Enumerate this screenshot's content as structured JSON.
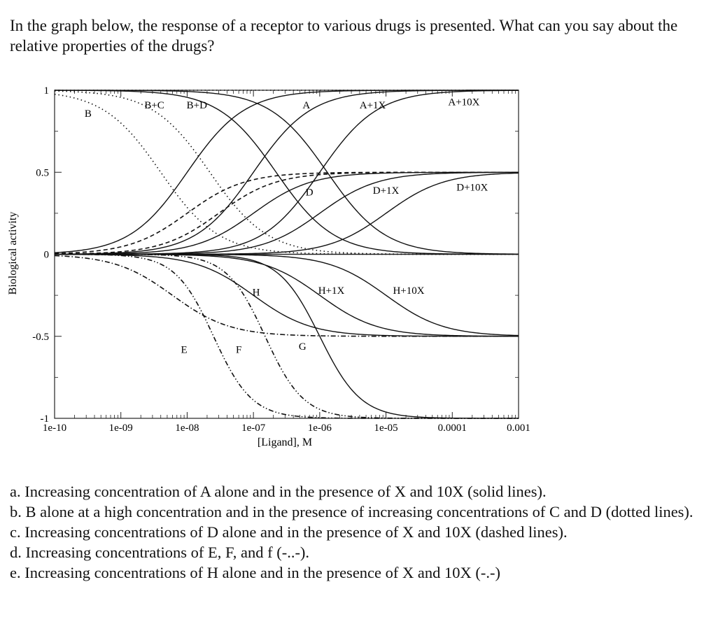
{
  "question": "In the graph below, the response of a receptor to various drugs is presented. What can you say about the relative properties of the drugs?",
  "items": [
    "a. Increasing concentration of A alone and in the presence of X and 10X (solid lines).",
    "b. B alone at a high concentration and in the presence of increasing concentrations of C and D (dotted lines).",
    "c. Increasing concentrations of D alone and in the presence of X and 10X (dashed lines).",
    "d. Increasing concentrations of E, F, and f (-..-).",
    "e. Increasing concentrations of H alone and in the presence of X and 10X (-.-)"
  ],
  "chart_data": {
    "type": "line",
    "title": "",
    "xlabel": "[Ligand], M",
    "ylabel": "Biological activity",
    "xscale": "log",
    "xlim": [
      1e-10,
      0.001
    ],
    "ylim": [
      -1,
      1
    ],
    "xticks": [
      1e-10,
      1e-09,
      1e-08,
      1e-07,
      1e-06,
      1e-05,
      0.0001,
      0.001
    ],
    "xtick_labels": [
      "1e-10",
      "1e-09",
      "1e-08",
      "1e-07",
      "1e-06",
      "1e-05",
      "0.0001",
      "0.001"
    ],
    "yticks": [
      -1,
      -0.5,
      0,
      0.5,
      1
    ],
    "ytick_labels": [
      "-1",
      "-0.5",
      "0",
      "0.5",
      "1"
    ],
    "grid": false,
    "series": [
      {
        "name": "A",
        "style": "solid",
        "kind": "agonist",
        "top": 1,
        "ec50": 1e-08,
        "hill": 1,
        "label_at": [
          6.3e-07,
          0.91
        ]
      },
      {
        "name": "A+1X",
        "style": "solid",
        "kind": "agonist",
        "top": 1,
        "ec50": 1e-07,
        "hill": 1,
        "label_at": [
          6.3e-06,
          0.91
        ]
      },
      {
        "name": "A+10X",
        "style": "solid",
        "kind": "agonist",
        "top": 1,
        "ec50": 1e-06,
        "hill": 1,
        "label_at": [
          0.00015,
          0.93
        ]
      },
      {
        "name": "B+C",
        "style": "solid",
        "kind": "inhibition",
        "top": 1,
        "ic50": 2.2e-07,
        "hill": 1,
        "label_at": null
      },
      {
        "name": "B+D",
        "style": "solid",
        "kind": "inhibition",
        "top": 1,
        "ic50": 1.3e-06,
        "hill": 1,
        "label_at": null
      },
      {
        "name": "B+C",
        "style": "dotted",
        "kind": "inhibition",
        "top": 1,
        "ic50": 4e-09,
        "hill": 1,
        "label_at": [
          3.2e-09,
          0.91
        ]
      },
      {
        "name": "B+D",
        "style": "dotted",
        "kind": "inhibition",
        "top": 1,
        "ic50": 2.2e-08,
        "hill": 1,
        "label_at": [
          1.4e-08,
          0.91
        ]
      },
      {
        "name": "B",
        "style": "dotted",
        "kind": "constant",
        "top": 1,
        "label_at": [
          3.2e-10,
          0.86
        ]
      },
      {
        "name": "D",
        "style": "solid",
        "kind": "agonist",
        "top": 0.5,
        "ec50": 1e-07,
        "hill": 1,
        "label_at": [
          7e-07,
          0.38
        ]
      },
      {
        "name": "D+1X",
        "style": "solid",
        "kind": "agonist",
        "top": 0.5,
        "ec50": 1e-06,
        "hill": 1,
        "label_at": [
          1e-05,
          0.39
        ]
      },
      {
        "name": "D+10X",
        "style": "solid",
        "kind": "agonist",
        "top": 0.5,
        "ec50": 1e-05,
        "hill": 1,
        "label_at": [
          0.0002,
          0.41
        ]
      },
      {
        "name": "D",
        "style": "dashed",
        "kind": "agonist",
        "top": 0.5,
        "ec50": 1e-08,
        "hill": 1,
        "label_at": null
      },
      {
        "name": "D+1X",
        "style": "dashed",
        "kind": "agonist",
        "top": 0.5,
        "ec50": 3e-08,
        "hill": 1,
        "label_at": null
      },
      {
        "name": "H",
        "style": "solid",
        "kind": "agonist",
        "top": -0.5,
        "ec50": 1e-07,
        "hill": 1,
        "label_at": [
          1.1e-07,
          -0.23
        ]
      },
      {
        "name": "H+1X",
        "style": "solid",
        "kind": "agonist",
        "top": -0.5,
        "ec50": 1e-06,
        "hill": 1,
        "label_at": [
          1.5e-06,
          -0.22
        ]
      },
      {
        "name": "H+10X",
        "style": "solid",
        "kind": "agonist",
        "top": -0.5,
        "ec50": 1e-05,
        "hill": 1,
        "label_at": [
          2.2e-05,
          -0.22
        ]
      },
      {
        "name": "H",
        "style": "dashdot",
        "kind": "agonist",
        "top": -0.5,
        "ec50": 6e-09,
        "hill": 1,
        "label_at": null
      },
      {
        "name": "G",
        "style": "solid",
        "kind": "agonist",
        "top": -1,
        "ec50": 1e-06,
        "hill": 1.4,
        "label_at": [
          5.5e-07,
          -0.56
        ]
      },
      {
        "name": "E",
        "style": "dashdotdot",
        "kind": "agonist",
        "top": -1,
        "ec50": 2.5e-08,
        "hill": 1.5,
        "label_at": [
          9e-09,
          -0.58
        ]
      },
      {
        "name": "F",
        "style": "dashdotdot",
        "kind": "agonist",
        "top": -1,
        "ec50": 1.5e-07,
        "hill": 1.5,
        "label_at": [
          6e-08,
          -0.58
        ]
      }
    ]
  }
}
